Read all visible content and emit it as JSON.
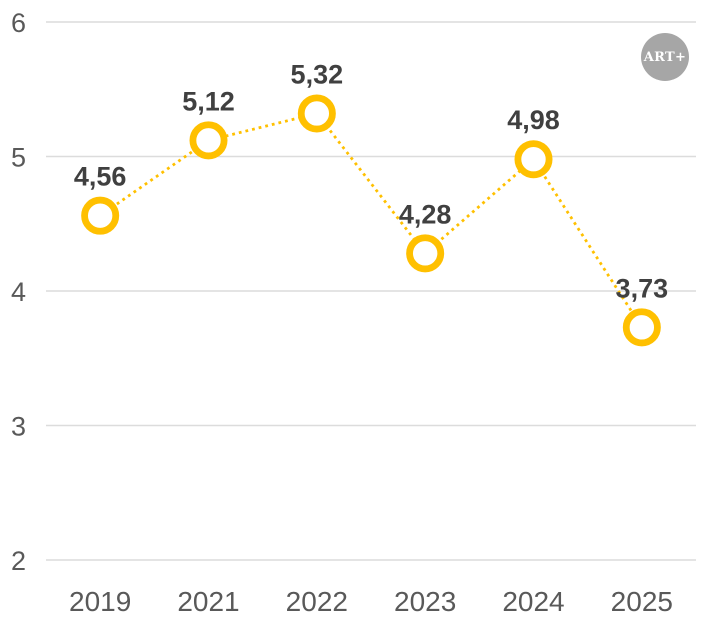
{
  "badge": {
    "text": "ART+",
    "bg_color": "#A6A6A6",
    "text_color": "#FFFFFF"
  },
  "chart_data": {
    "type": "line",
    "categories": [
      "2019",
      "2021",
      "2022",
      "2023",
      "2024",
      "2025"
    ],
    "values": [
      4.56,
      5.12,
      5.32,
      4.28,
      4.98,
      3.73
    ],
    "data_labels": [
      "4,56",
      "5,12",
      "5,32",
      "4,28",
      "4,98",
      "3,73"
    ],
    "series_name": "",
    "title": "",
    "xlabel": "",
    "ylabel": "",
    "ylim": [
      2,
      6
    ],
    "yticks": [
      2,
      3,
      4,
      5,
      6
    ],
    "grid": "horizontal-only",
    "legend": "none",
    "line_style": "dotted",
    "marker_style": "open-circle",
    "colors": {
      "line": "#FFC000",
      "marker_stroke": "#FFC000",
      "marker_fill": "#FFFFFF",
      "data_label": "#404040",
      "axis_label": "#595959",
      "gridline": "#DCDCDC",
      "background": "#FFFFFF"
    }
  }
}
